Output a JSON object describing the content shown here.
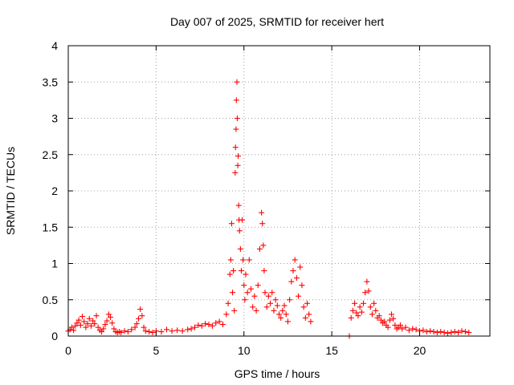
{
  "chart_data": {
    "type": "scatter",
    "title": "Day 007 of 2025, SRMTID for receiver hert",
    "xlabel": "GPS time / hours",
    "ylabel": "SRMTID / TECUs",
    "xlim": [
      0,
      24
    ],
    "ylim": [
      0,
      4
    ],
    "x_ticks": [
      0,
      5,
      10,
      15,
      20
    ],
    "y_ticks": [
      0,
      0.5,
      1,
      1.5,
      2,
      2.5,
      3,
      3.5,
      4
    ],
    "y_tick_labels": [
      "0",
      "0.5",
      "1",
      "1.5",
      "2",
      "2.5",
      "3",
      "3.5",
      "4"
    ],
    "grid": true,
    "marker": "plus",
    "color": "#ff0000",
    "series": [
      {
        "name": "SRMTID",
        "points": [
          [
            0.0,
            0.07
          ],
          [
            0.1,
            0.09
          ],
          [
            0.2,
            0.12
          ],
          [
            0.3,
            0.08
          ],
          [
            0.4,
            0.14
          ],
          [
            0.5,
            0.18
          ],
          [
            0.6,
            0.22
          ],
          [
            0.7,
            0.15
          ],
          [
            0.8,
            0.27
          ],
          [
            0.9,
            0.2
          ],
          [
            1.0,
            0.12
          ],
          [
            1.1,
            0.17
          ],
          [
            1.2,
            0.24
          ],
          [
            1.3,
            0.14
          ],
          [
            1.4,
            0.21
          ],
          [
            1.5,
            0.17
          ],
          [
            1.6,
            0.28
          ],
          [
            1.7,
            0.12
          ],
          [
            1.8,
            0.08
          ],
          [
            1.9,
            0.06
          ],
          [
            2.0,
            0.1
          ],
          [
            2.1,
            0.16
          ],
          [
            2.2,
            0.21
          ],
          [
            2.3,
            0.3
          ],
          [
            2.4,
            0.26
          ],
          [
            2.5,
            0.18
          ],
          [
            2.6,
            0.1
          ],
          [
            2.7,
            0.06
          ],
          [
            2.8,
            0.05
          ],
          [
            2.9,
            0.06
          ],
          [
            3.0,
            0.05
          ],
          [
            3.2,
            0.07
          ],
          [
            3.4,
            0.06
          ],
          [
            3.6,
            0.09
          ],
          [
            3.8,
            0.12
          ],
          [
            3.9,
            0.17
          ],
          [
            4.0,
            0.24
          ],
          [
            4.1,
            0.37
          ],
          [
            4.2,
            0.28
          ],
          [
            4.3,
            0.12
          ],
          [
            4.4,
            0.07
          ],
          [
            4.6,
            0.06
          ],
          [
            4.8,
            0.05
          ],
          [
            5.0,
            0.07
          ],
          [
            5.3,
            0.06
          ],
          [
            5.6,
            0.09
          ],
          [
            5.9,
            0.07
          ],
          [
            6.2,
            0.08
          ],
          [
            6.5,
            0.07
          ],
          [
            6.8,
            0.09
          ],
          [
            7.0,
            0.1
          ],
          [
            7.2,
            0.12
          ],
          [
            7.4,
            0.15
          ],
          [
            7.6,
            0.14
          ],
          [
            7.8,
            0.17
          ],
          [
            8.0,
            0.16
          ],
          [
            8.2,
            0.14
          ],
          [
            8.4,
            0.18
          ],
          [
            8.6,
            0.2
          ],
          [
            8.8,
            0.16
          ],
          [
            9.0,
            0.3
          ],
          [
            9.1,
            0.45
          ],
          [
            9.2,
            0.85
          ],
          [
            9.25,
            1.05
          ],
          [
            9.3,
            1.55
          ],
          [
            9.35,
            0.6
          ],
          [
            9.4,
            0.9
          ],
          [
            9.45,
            0.35
          ],
          [
            9.5,
            2.25
          ],
          [
            9.52,
            2.6
          ],
          [
            9.55,
            2.85
          ],
          [
            9.57,
            3.25
          ],
          [
            9.6,
            3.5
          ],
          [
            9.62,
            3.0
          ],
          [
            9.65,
            2.35
          ],
          [
            9.67,
            2.48
          ],
          [
            9.7,
            1.8
          ],
          [
            9.72,
            1.6
          ],
          [
            9.75,
            1.45
          ],
          [
            9.8,
            1.2
          ],
          [
            9.85,
            0.9
          ],
          [
            9.9,
            1.6
          ],
          [
            9.95,
            1.05
          ],
          [
            10.0,
            0.7
          ],
          [
            10.05,
            0.5
          ],
          [
            10.1,
            0.85
          ],
          [
            10.2,
            0.6
          ],
          [
            10.3,
            1.05
          ],
          [
            10.4,
            0.65
          ],
          [
            10.5,
            0.4
          ],
          [
            10.6,
            0.55
          ],
          [
            10.7,
            0.35
          ],
          [
            10.8,
            0.7
          ],
          [
            10.9,
            1.2
          ],
          [
            11.0,
            1.7
          ],
          [
            11.05,
            1.55
          ],
          [
            11.1,
            1.25
          ],
          [
            11.15,
            0.9
          ],
          [
            11.2,
            0.6
          ],
          [
            11.3,
            0.4
          ],
          [
            11.4,
            0.55
          ],
          [
            11.5,
            0.45
          ],
          [
            11.6,
            0.6
          ],
          [
            11.7,
            0.35
          ],
          [
            11.8,
            0.5
          ],
          [
            11.9,
            0.42
          ],
          [
            12.0,
            0.3
          ],
          [
            12.1,
            0.25
          ],
          [
            12.2,
            0.35
          ],
          [
            12.3,
            0.42
          ],
          [
            12.4,
            0.3
          ],
          [
            12.5,
            0.2
          ],
          [
            12.6,
            0.5
          ],
          [
            12.7,
            0.75
          ],
          [
            12.8,
            0.9
          ],
          [
            12.9,
            1.05
          ],
          [
            13.0,
            0.8
          ],
          [
            13.1,
            0.55
          ],
          [
            13.2,
            0.95
          ],
          [
            13.3,
            0.7
          ],
          [
            13.4,
            0.4
          ],
          [
            13.5,
            0.25
          ],
          [
            13.6,
            0.45
          ],
          [
            13.7,
            0.3
          ],
          [
            13.8,
            0.2
          ],
          [
            16.0,
            0.0
          ],
          [
            16.1,
            0.25
          ],
          [
            16.2,
            0.35
          ],
          [
            16.3,
            0.45
          ],
          [
            16.4,
            0.32
          ],
          [
            16.5,
            0.28
          ],
          [
            16.6,
            0.4
          ],
          [
            16.7,
            0.33
          ],
          [
            16.8,
            0.45
          ],
          [
            16.9,
            0.6
          ],
          [
            17.0,
            0.75
          ],
          [
            17.1,
            0.62
          ],
          [
            17.2,
            0.4
          ],
          [
            17.3,
            0.3
          ],
          [
            17.4,
            0.45
          ],
          [
            17.5,
            0.35
          ],
          [
            17.6,
            0.25
          ],
          [
            17.7,
            0.28
          ],
          [
            17.8,
            0.22
          ],
          [
            17.9,
            0.18
          ],
          [
            18.0,
            0.2
          ],
          [
            18.1,
            0.15
          ],
          [
            18.2,
            0.12
          ],
          [
            18.3,
            0.22
          ],
          [
            18.4,
            0.3
          ],
          [
            18.5,
            0.24
          ],
          [
            18.6,
            0.15
          ],
          [
            18.7,
            0.1
          ],
          [
            18.8,
            0.12
          ],
          [
            18.9,
            0.15
          ],
          [
            19.0,
            0.1
          ],
          [
            19.2,
            0.12
          ],
          [
            19.4,
            0.08
          ],
          [
            19.6,
            0.1
          ],
          [
            19.8,
            0.09
          ],
          [
            20.0,
            0.07
          ],
          [
            20.2,
            0.08
          ],
          [
            20.4,
            0.06
          ],
          [
            20.6,
            0.07
          ],
          [
            20.8,
            0.06
          ],
          [
            21.0,
            0.05
          ],
          [
            21.2,
            0.06
          ],
          [
            21.4,
            0.05
          ],
          [
            21.6,
            0.04
          ],
          [
            21.8,
            0.05
          ],
          [
            22.0,
            0.06
          ],
          [
            22.2,
            0.05
          ],
          [
            22.4,
            0.07
          ],
          [
            22.6,
            0.06
          ],
          [
            22.8,
            0.05
          ]
        ]
      }
    ]
  }
}
